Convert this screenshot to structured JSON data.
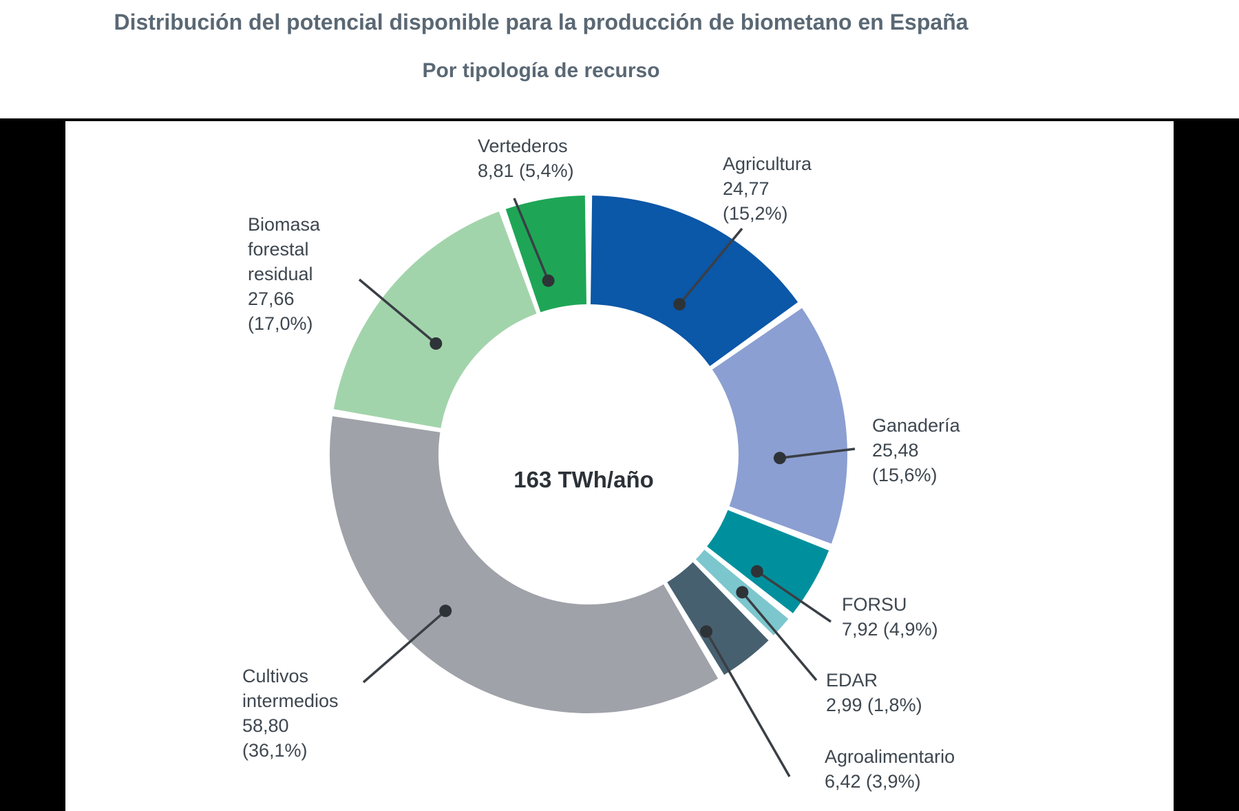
{
  "page": {
    "title": "Distribución del potencial disponible para la producción de biometano en España",
    "subtitle": "Por tipología de recurso"
  },
  "chart_data": {
    "type": "pie",
    "subtype": "donut",
    "title": "Distribución del potencial disponible para la producción de biometano en España",
    "subtitle": "Por tipología de recurso",
    "center_label": "163 TWh/año",
    "total": 163,
    "unit": "TWh/año",
    "start_angle_deg": 0,
    "direction": "clockwise",
    "segments": [
      {
        "id": "agricultura",
        "label": "Agricultura",
        "value": 24.77,
        "pct": 15.2,
        "color": "#0b57a8",
        "lines": [
          "Agricultura",
          "24,77",
          "(15,2%)"
        ]
      },
      {
        "id": "ganaderia",
        "label": "Ganadería",
        "value": 25.48,
        "pct": 15.6,
        "color": "#8c9fd2",
        "lines": [
          "Ganadería",
          "25,48",
          "(15,6%)"
        ]
      },
      {
        "id": "forsu",
        "label": "FORSU",
        "value": 7.92,
        "pct": 4.9,
        "color": "#00909d",
        "lines": [
          "FORSU",
          "7,92 (4,9%)"
        ]
      },
      {
        "id": "edar",
        "label": "EDAR",
        "value": 2.99,
        "pct": 1.8,
        "color": "#7cc6cd",
        "lines": [
          "EDAR",
          "2,99 (1,8%)"
        ]
      },
      {
        "id": "agroalimentario",
        "label": "Agroalimentario",
        "value": 6.42,
        "pct": 3.9,
        "color": "#47606f",
        "lines": [
          "Agroalimentario",
          "6,42 (3,9%)"
        ]
      },
      {
        "id": "cultivos",
        "label": "Cultivos intermedios",
        "value": 58.8,
        "pct": 36.1,
        "color": "#9fa2a9",
        "lines": [
          "Cultivos",
          "intermedios",
          "58,80",
          "(36,1%)"
        ]
      },
      {
        "id": "biomasa",
        "label": "Biomasa forestal residual",
        "value": 27.66,
        "pct": 17.0,
        "color": "#a2d4ab",
        "lines": [
          "Biomasa",
          "forestal",
          "residual",
          "27,66",
          "(17,0%)"
        ]
      },
      {
        "id": "vertederos",
        "label": "Vertederos",
        "value": 8.81,
        "pct": 5.4,
        "color": "#1ea656",
        "lines": [
          "Vertederos",
          "8,81 (5,4%)"
        ]
      }
    ]
  }
}
